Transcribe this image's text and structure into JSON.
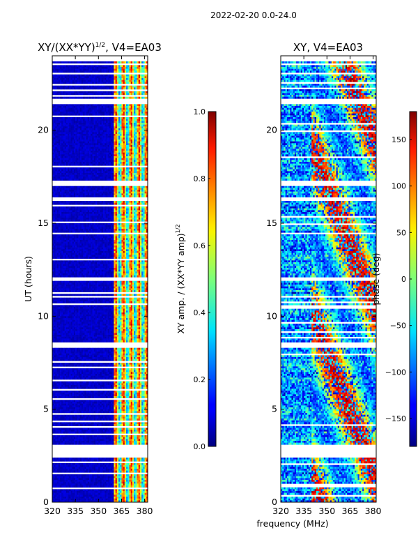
{
  "chart_data": [
    {
      "type": "heatmap",
      "suptitle": "2022-02-20 0.0-24.0",
      "title_main": "XY/(XX*YY)",
      "title_sup": "1/2",
      "title_tail": ", V4=EA03",
      "xlabel": "",
      "ylabel": "UT (hours)",
      "xlim": [
        320,
        382
      ],
      "ylim": [
        0,
        24
      ],
      "xticks": [
        320,
        335,
        350,
        365,
        380
      ],
      "yticks": [
        0,
        5,
        10,
        15,
        20
      ],
      "colorbar": {
        "label_main": "XY amp. / (XX*YY amp)",
        "label_sup": "1/2",
        "range": [
          0.0,
          1.0
        ],
        "ticks": [
          "0.0",
          "0.2",
          "0.4",
          "0.6",
          "0.8",
          "1.0"
        ],
        "colormap": "jet"
      },
      "description": "normalized cross-correlation amplitude vs frequency and UT; low (~0.05) below ~360 MHz, high/variable (0.3-0.9) in bands between ~360 and 382 MHz"
    },
    {
      "type": "heatmap",
      "title": "XY, V4=EA03",
      "xlabel": "frequency (MHz)",
      "ylabel": "",
      "xlim": [
        320,
        382
      ],
      "ylim": [
        0,
        24
      ],
      "xticks": [
        320,
        335,
        350,
        365,
        380
      ],
      "yticks": [
        0,
        5,
        10,
        15,
        20
      ],
      "colorbar": {
        "label": "phase (deg)",
        "range": [
          -180,
          180
        ],
        "ticks": [
          "150",
          "100",
          "50",
          "0",
          "−50",
          "−100",
          "−150"
        ],
        "colormap": "jet"
      },
      "description": "XY cross-correlation phase vs frequency and UT; mostly noisy/random phase with coherent structure near 340-382 MHz"
    }
  ],
  "data_gaps_hours": [
    [
      2.45,
      3.1
    ],
    [
      8.35,
      8.6
    ],
    [
      11.95,
      12.1
    ],
    [
      16.25,
      16.45
    ],
    [
      17.0,
      17.35
    ],
    [
      21.55,
      21.7
    ],
    [
      23.0,
      23.15
    ],
    [
      23.7,
      24.0
    ]
  ],
  "colors": {
    "background": "#ffffff",
    "axis": "#000000"
  }
}
